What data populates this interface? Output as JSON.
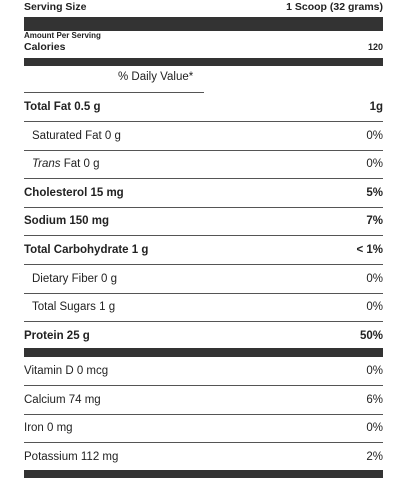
{
  "header": {
    "serving_size_label": "Serving Size",
    "serving_size": "1 Scoop (32 grams)",
    "amount_per_serving": "Amount Per Serving",
    "calories_label": "Calories",
    "calories": "120",
    "daily_value_heading": "% Daily Value*"
  },
  "rows": [
    {
      "label": "Total Fat 0.5 g",
      "dv": "1g"
    },
    {
      "label": "Saturated Fat 0 g",
      "dv": "0%"
    },
    {
      "prefix": "Trans",
      "label": "Fat 0 g",
      "dv": "0%"
    },
    {
      "label": "Cholesterol 15 mg",
      "dv": "5%"
    },
    {
      "label": "Sodium 150 mg",
      "dv": "7%"
    },
    {
      "label": "Total Carbohydrate 1 g",
      "dv": "< 1%"
    },
    {
      "label": "Dietary Fiber 0 g",
      "dv": "0%"
    },
    {
      "label": "Total Sugars 1 g",
      "dv": "0%"
    },
    {
      "label": "Protein 25 g",
      "dv": "50%"
    }
  ],
  "vitamins": [
    {
      "label": "Vitamin D 0 mcg",
      "dv": "0%"
    },
    {
      "label": "Calcium 74 mg",
      "dv": "6%"
    },
    {
      "label": "Iron 0 mg",
      "dv": "0%"
    },
    {
      "label": "Potassium 112 mg",
      "dv": "2%"
    }
  ]
}
